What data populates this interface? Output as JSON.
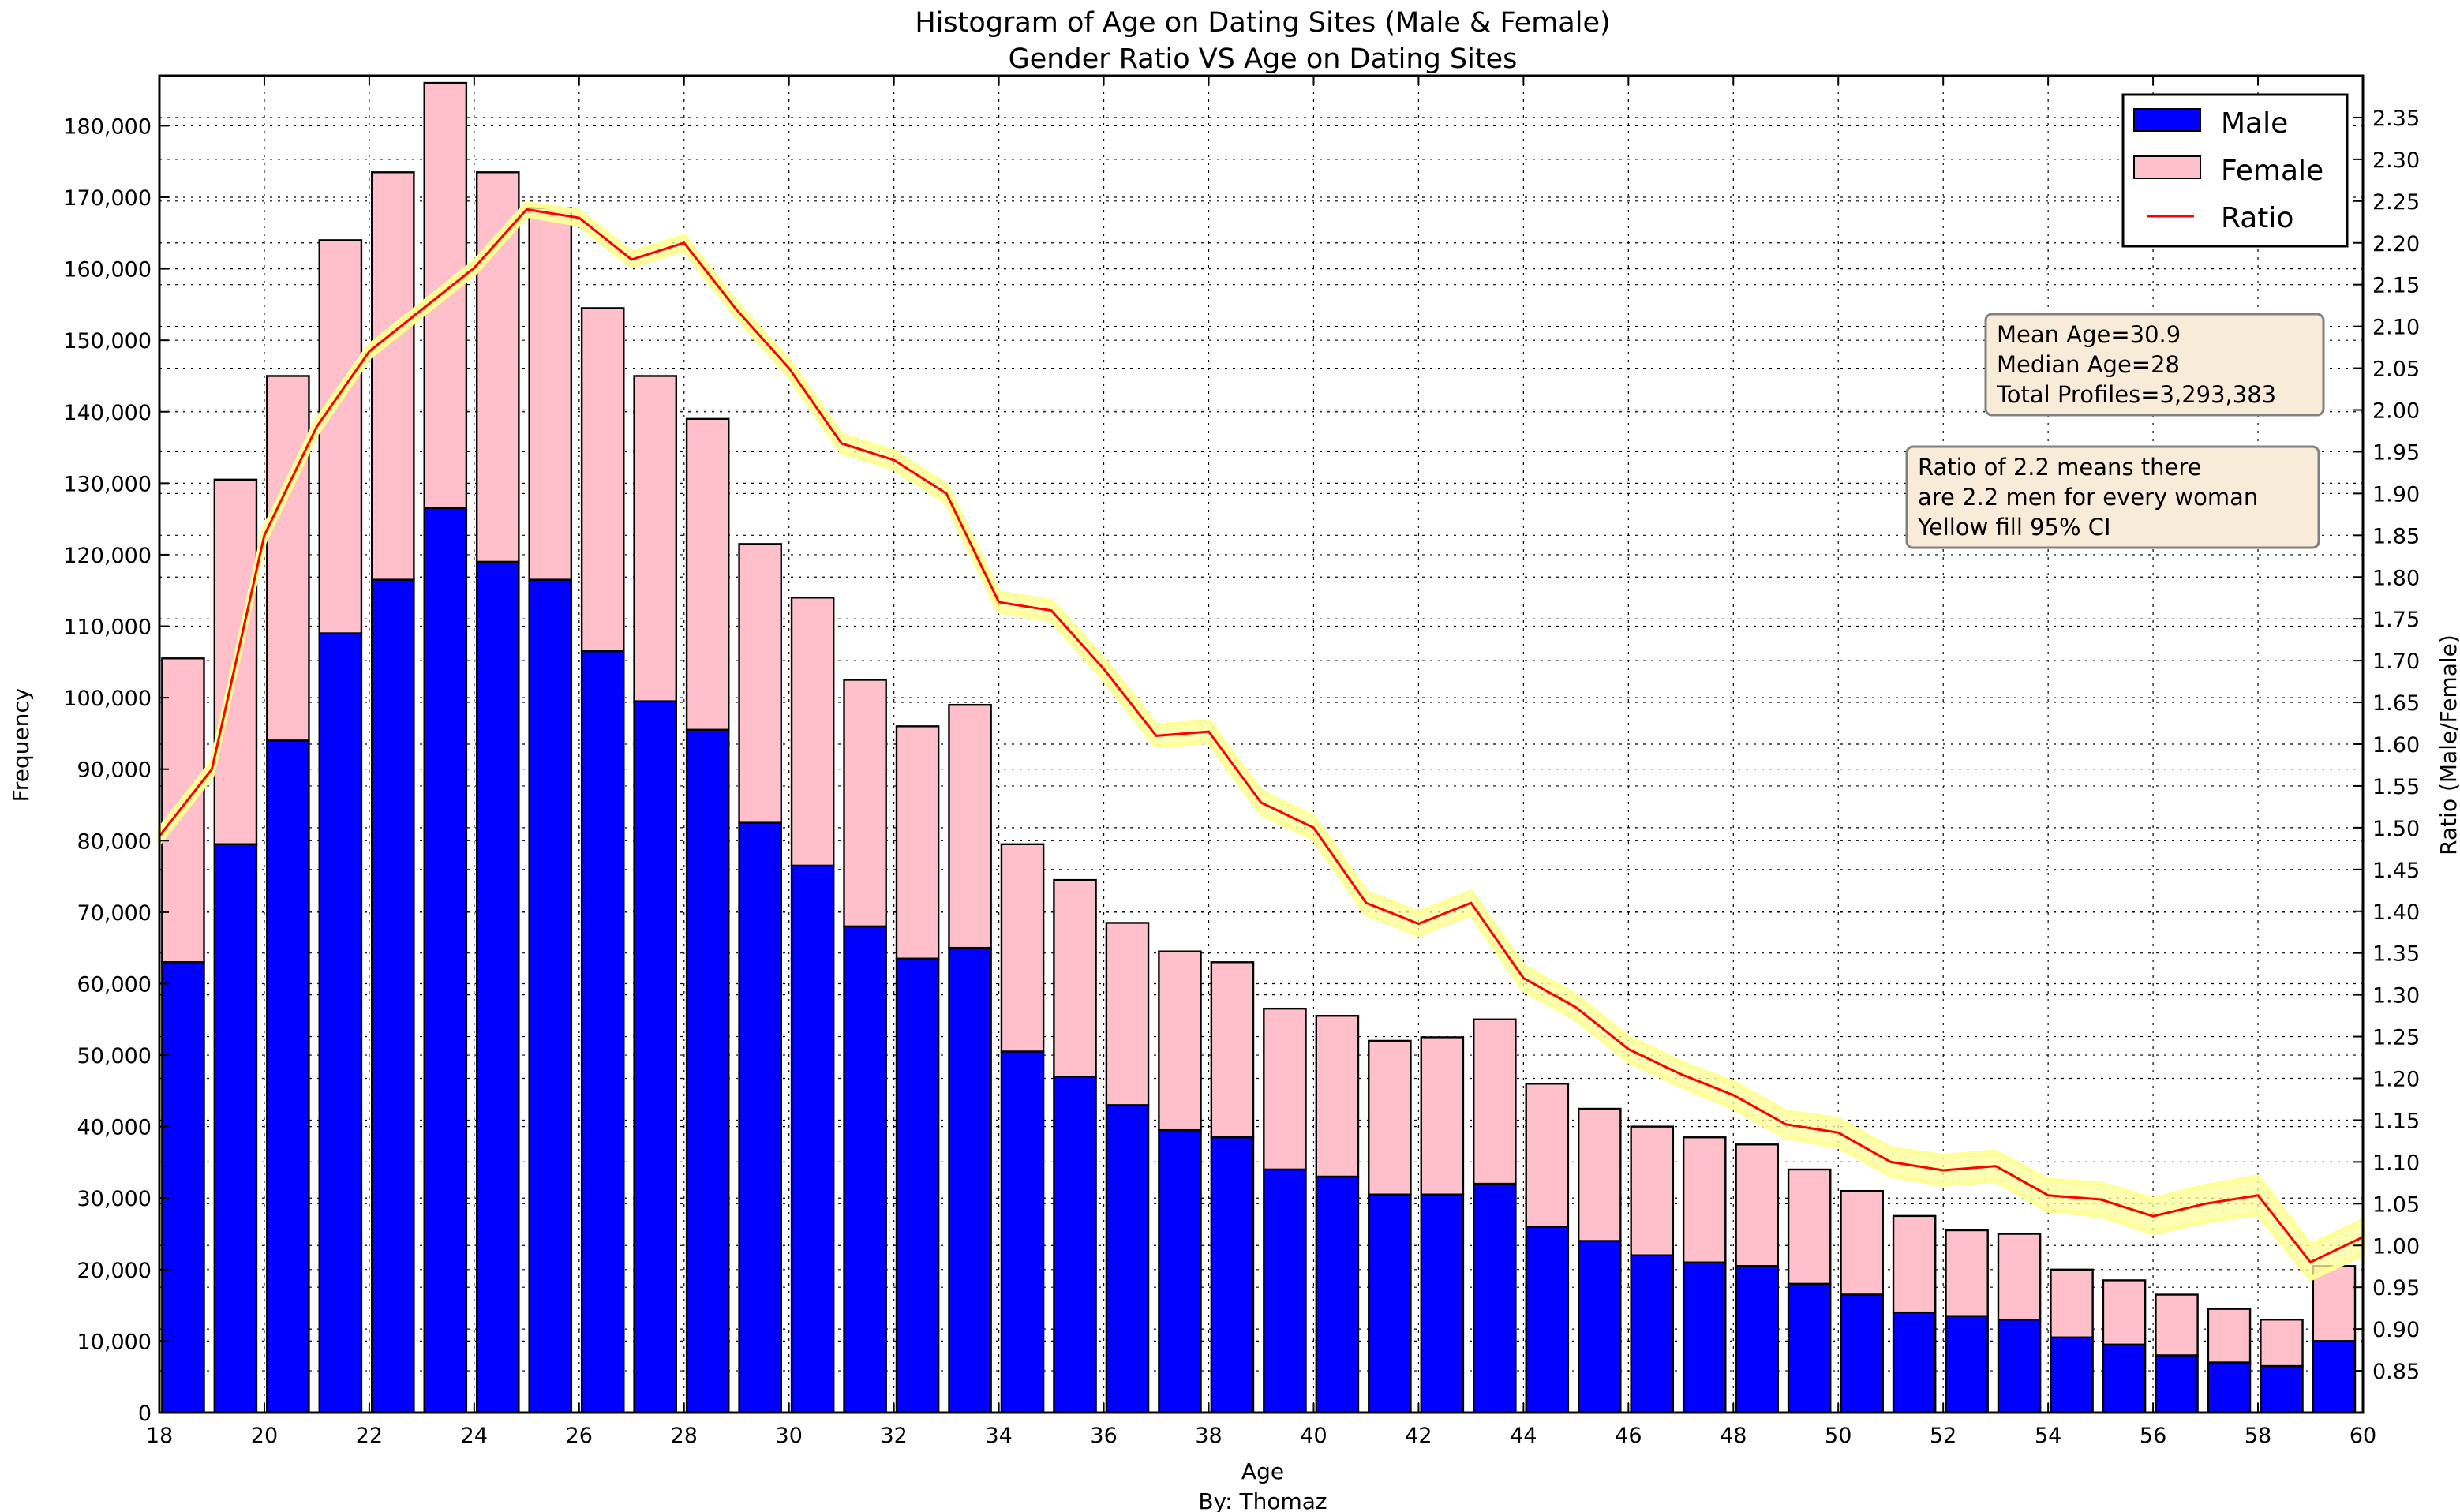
{
  "chart_data": {
    "type": "bar",
    "title": "Histogram of Age on Dating Sites (Male & Female)",
    "subtitle": "Gender Ratio VS Age on Dating Sites",
    "xlabel": "Age",
    "credit": "By: Thomaz",
    "ylabel": "Frequency",
    "ylabel_right": "Ratio (Male/Female)",
    "xlim": [
      18,
      60
    ],
    "ylim": [
      0,
      187000
    ],
    "ylim_right": [
      0.8,
      2.4
    ],
    "x_ticks": [
      18,
      20,
      22,
      24,
      26,
      28,
      30,
      32,
      34,
      36,
      38,
      40,
      42,
      44,
      46,
      48,
      50,
      52,
      54,
      56,
      58,
      60
    ],
    "y_ticks": [
      0,
      10000,
      20000,
      30000,
      40000,
      50000,
      60000,
      70000,
      80000,
      90000,
      100000,
      110000,
      120000,
      130000,
      140000,
      150000,
      160000,
      170000,
      180000
    ],
    "y_tick_labels": [
      "0",
      "10,000",
      "20,000",
      "30,000",
      "40,000",
      "50,000",
      "60,000",
      "70,000",
      "80,000",
      "90,000",
      "100,000",
      "110,000",
      "120,000",
      "130,000",
      "140,000",
      "150,000",
      "160,000",
      "170,000",
      "180,000"
    ],
    "y_right_ticks": [
      "0.85",
      "0.90",
      "0.95",
      "1.00",
      "1.05",
      "1.10",
      "1.15",
      "1.20",
      "1.25",
      "1.30",
      "1.35",
      "1.40",
      "1.45",
      "1.50",
      "1.55",
      "1.60",
      "1.65",
      "1.70",
      "1.75",
      "1.80",
      "1.85",
      "1.90",
      "1.95",
      "2.00",
      "2.05",
      "2.10",
      "2.15",
      "2.20",
      "2.25",
      "2.30",
      "2.35"
    ],
    "grid": true,
    "stacked": true,
    "legend_position": "top-right",
    "ages": [
      18,
      19,
      20,
      21,
      22,
      23,
      24,
      25,
      26,
      27,
      28,
      29,
      30,
      31,
      32,
      33,
      34,
      35,
      36,
      37,
      38,
      39,
      40,
      41,
      42,
      43,
      44,
      45,
      46,
      47,
      48,
      49,
      50,
      51,
      52,
      53,
      54,
      55,
      56,
      57,
      58,
      59
    ],
    "series": [
      {
        "name": "Male",
        "color": "#0000ff",
        "values": [
          63000,
          79500,
          94000,
          109000,
          116500,
          126500,
          119000,
          116500,
          106500,
          99500,
          95500,
          82500,
          76500,
          68000,
          63500,
          65000,
          50500,
          47000,
          43000,
          39500,
          38500,
          34000,
          33000,
          30500,
          30500,
          32000,
          26000,
          24000,
          22000,
          21000,
          20500,
          18000,
          16500,
          14000,
          13500,
          13000,
          10500,
          9500,
          8000,
          7000,
          6500,
          10000
        ]
      },
      {
        "name": "Female",
        "color": "#ffc0cb",
        "values": [
          42500,
          51000,
          51000,
          55000,
          57000,
          59500,
          54500,
          52000,
          48000,
          45500,
          43500,
          39000,
          37500,
          34500,
          32500,
          34000,
          29000,
          27500,
          25500,
          25000,
          24500,
          22500,
          22500,
          21500,
          22000,
          23000,
          20000,
          18500,
          18000,
          17500,
          17000,
          16000,
          14500,
          13500,
          12000,
          12000,
          9500,
          9000,
          8500,
          7500,
          6500,
          10500
        ]
      }
    ],
    "ratio": {
      "name": "Ratio",
      "color": "#ff0000",
      "ci_color": "#ffff99",
      "ci_label": "95% CI",
      "ages": [
        18,
        19,
        20,
        21,
        22,
        23,
        24,
        25,
        26,
        27,
        28,
        29,
        30,
        31,
        32,
        33,
        34,
        35,
        36,
        37,
        38,
        39,
        40,
        41,
        42,
        43,
        44,
        45,
        46,
        47,
        48,
        49,
        50,
        51,
        52,
        53,
        54,
        55,
        56,
        57,
        58,
        59,
        60
      ],
      "values": [
        1.49,
        1.57,
        1.85,
        1.98,
        2.07,
        2.12,
        2.17,
        2.24,
        2.23,
        2.18,
        2.2,
        2.12,
        2.05,
        1.96,
        1.94,
        1.9,
        1.77,
        1.76,
        1.69,
        1.61,
        1.615,
        1.53,
        1.5,
        1.41,
        1.385,
        1.41,
        1.32,
        1.285,
        1.235,
        1.205,
        1.18,
        1.145,
        1.135,
        1.1,
        1.09,
        1.095,
        1.06,
        1.055,
        1.035,
        1.05,
        1.06,
        0.98,
        1.01
      ],
      "ci_halfwidth": [
        0.008,
        0.008,
        0.008,
        0.008,
        0.007,
        0.007,
        0.007,
        0.007,
        0.008,
        0.008,
        0.008,
        0.008,
        0.009,
        0.01,
        0.01,
        0.01,
        0.011,
        0.011,
        0.012,
        0.012,
        0.012,
        0.013,
        0.013,
        0.013,
        0.013,
        0.013,
        0.014,
        0.014,
        0.014,
        0.014,
        0.015,
        0.015,
        0.016,
        0.016,
        0.017,
        0.017,
        0.018,
        0.019,
        0.02,
        0.021,
        0.022,
        0.02,
        0.02
      ]
    },
    "annotations": {
      "stats": [
        "Mean Age=30.9",
        "Median Age=28",
        "Total Profiles=3,293,383"
      ],
      "note": [
        "Ratio of 2.2 means there",
        "are 2.2 men for every woman",
        "Yellow fill 95% CI"
      ],
      "box_color": "#f8ecd8"
    }
  }
}
